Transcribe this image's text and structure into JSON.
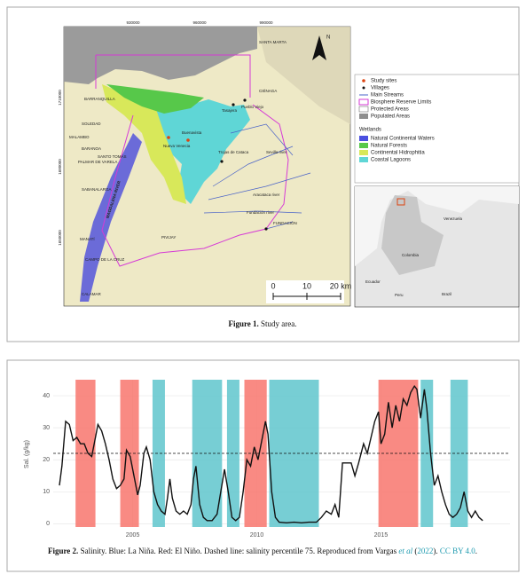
{
  "figure1": {
    "grid_x": [
      "930000",
      "960000",
      "990000"
    ],
    "grid_y": [
      "1710000",
      "1680000",
      "1650000"
    ],
    "places": [
      "BARRANQUILLA",
      "SOLEDAD",
      "MALAMBO",
      "BARANOA",
      "SANTO TOMÁS",
      "PALMAR DE VARELA",
      "SABANALARGA",
      "MANATÍ",
      "CAMPO DE LA CRUZ",
      "CALAMAR",
      "PIVIJAY",
      "FUNDACIÓN",
      "CIÉNAGA",
      "SANTA MARTA",
      "Tasajera",
      "Pueblo Viejo",
      "Nueva Venecia",
      "Buenavista",
      "Trojas de Cataca",
      "Sevilla river",
      "Aracataca river",
      "Fundación river"
    ],
    "river_label": "MAGDALENA RIVER",
    "north": "N",
    "scale": [
      "0",
      "10",
      "20 km"
    ],
    "legend": [
      "Study sites",
      "Villages",
      "Main Streams",
      "Biosphere Reserve Limits",
      "Protected Areas",
      "Populated Areas"
    ],
    "wetlands_title": "Wetlands",
    "wetlands": [
      "Natural Continental Waters",
      "Natural Forests",
      "Continental Hidrophitia",
      "Coastal Lagoons"
    ],
    "inset": [
      "Venezuela",
      "Colombia",
      "Ecuador",
      "Peru",
      "Brazil"
    ],
    "caption_label": "Figure 1.",
    "caption": " Study area."
  },
  "chart_data": {
    "type": "line",
    "ylabel": "Sal. (g/kg)",
    "color": "#111111",
    "x": [
      2002.05,
      2002.15,
      2002.3,
      2002.45,
      2002.6,
      2002.75,
      2002.9,
      2003.05,
      2003.2,
      2003.35,
      2003.5,
      2003.6,
      2003.75,
      2003.9,
      2004.05,
      2004.2,
      2004.35,
      2004.5,
      2004.65,
      2004.75,
      2004.9,
      2005.05,
      2005.2,
      2005.3,
      2005.45,
      2005.55,
      2005.7,
      2005.85,
      2006.0,
      2006.15,
      2006.3,
      2006.4,
      2006.5,
      2006.6,
      2006.75,
      2006.9,
      2007.05,
      2007.2,
      2007.35,
      2007.45,
      2007.55,
      2007.7,
      2007.85,
      2008.0,
      2008.2,
      2008.4,
      2008.55,
      2008.7,
      2008.85,
      2009.0,
      2009.15,
      2009.3,
      2009.45,
      2009.6,
      2009.75,
      2009.9,
      2010.05,
      2010.2,
      2010.35,
      2010.45,
      2010.6,
      2010.75,
      2010.9,
      2011.2,
      2011.5,
      2011.8,
      2012.1,
      2012.4,
      2012.6,
      2012.8,
      2013.0,
      2013.15,
      2013.3,
      2013.45,
      2013.6,
      2013.8,
      2013.95,
      2014.1,
      2014.3,
      2014.45,
      2014.6,
      2014.75,
      2014.9,
      2015.0,
      2015.15,
      2015.3,
      2015.45,
      2015.6,
      2015.75,
      2015.9,
      2016.05,
      2016.2,
      2016.35,
      2016.45,
      2016.6,
      2016.75,
      2016.85,
      2017.0,
      2017.15,
      2017.3,
      2017.45,
      2017.6,
      2017.75,
      2017.9,
      2018.05,
      2018.2,
      2018.35,
      2018.5,
      2018.65,
      2018.8,
      2018.95,
      2019.1
    ],
    "values": [
      12,
      18,
      32,
      31,
      26,
      27,
      25,
      25,
      22,
      21,
      27,
      31,
      29,
      25,
      20,
      14,
      11,
      12,
      14,
      23,
      21,
      15,
      9,
      12,
      22,
      24,
      20,
      10,
      6,
      4,
      3,
      8,
      14,
      8,
      4,
      3,
      4,
      3,
      6,
      14,
      18,
      6,
      2,
      1,
      1,
      3,
      10,
      17,
      10,
      2,
      1,
      2,
      10,
      20,
      18,
      24,
      20,
      26,
      32,
      28,
      10,
      2,
      0.5,
      0.3,
      0.5,
      0.3,
      0.5,
      0.5,
      2,
      4,
      3,
      6,
      2,
      19,
      19,
      19,
      15,
      19,
      25,
      22,
      27,
      32,
      35,
      25,
      28,
      38,
      30,
      37,
      32,
      39,
      37,
      41,
      43,
      42,
      33,
      42,
      36,
      22,
      12,
      15,
      10,
      6,
      3,
      2,
      3,
      5,
      10,
      4,
      2,
      4,
      2,
      1
    ],
    "periods": [
      {
        "start": 2002.7,
        "end": 2003.5,
        "color": "#f8766d"
      },
      {
        "start": 2004.5,
        "end": 2005.25,
        "color": "#f8766d"
      },
      {
        "start": 2005.8,
        "end": 2006.3,
        "color": "#5fc6cc"
      },
      {
        "start": 2007.4,
        "end": 2008.6,
        "color": "#5fc6cc"
      },
      {
        "start": 2008.8,
        "end": 2009.3,
        "color": "#5fc6cc"
      },
      {
        "start": 2009.5,
        "end": 2010.4,
        "color": "#f8766d"
      },
      {
        "start": 2010.5,
        "end": 2012.5,
        "color": "#5fc6cc"
      },
      {
        "start": 2014.9,
        "end": 2016.5,
        "color": "#f8766d"
      },
      {
        "start": 2016.6,
        "end": 2017.1,
        "color": "#5fc6cc"
      },
      {
        "start": 2017.8,
        "end": 2018.5,
        "color": "#5fc6cc"
      }
    ],
    "reference_line": 22,
    "xlim": [
      2001.8,
      2020.2
    ],
    "xticks": [
      2005,
      2010,
      2015
    ],
    "ylim": [
      -1,
      45
    ],
    "yticks": [
      0,
      10,
      20,
      30,
      40
    ],
    "grid": true
  },
  "figure2": {
    "caption_label": "Figure 2.",
    "caption": [
      " Salinity. Blue: La Niña. Red: El Niño. Dashed line: salinity percentile 75. Reproduced from Vargas ",
      "et al",
      " (",
      "2022",
      "). ",
      "CC BY 4.0",
      "."
    ]
  }
}
